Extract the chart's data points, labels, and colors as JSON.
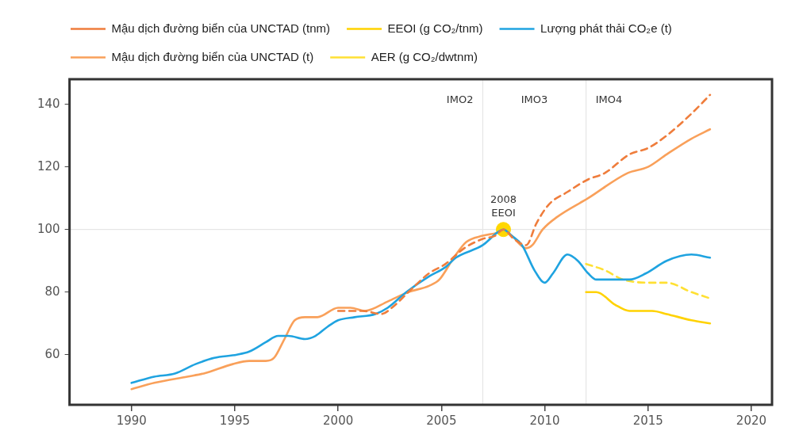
{
  "chart_data": {
    "type": "line",
    "legend": "top left",
    "series": [
      {
        "name": "Mậu dịch đường biển của UNCTAD (tnm)",
        "color": "#ef7d3c",
        "line_style": "dashed",
        "x": [
          2000,
          2001.2,
          2002.1,
          2002.6,
          2003.4,
          2004.4,
          2005.2,
          2006.1,
          2007,
          2007.6,
          2008,
          2008.5,
          2009.1,
          2009.6,
          2010.2,
          2011.1,
          2012.1,
          2012.9,
          2014.1,
          2015,
          2015.9,
          2017.1,
          2018
        ],
        "values": [
          74,
          74,
          73,
          75,
          80,
          86,
          89,
          94,
          97,
          98,
          100,
          97,
          95,
          102,
          108,
          112,
          116,
          118,
          124,
          126,
          130,
          137,
          143
        ]
      },
      {
        "name": "EEOI (g CO₂/tnm)",
        "color": "#ffd200",
        "x": [
          2012,
          2012.5,
          2013.4,
          2014.1,
          2015.2,
          2015.9,
          2017.1,
          2018
        ],
        "values": [
          80,
          80,
          76,
          74,
          74,
          73,
          71,
          70
        ]
      },
      {
        "name": "Lượng phát thải CO₂e (t)",
        "color": "#1fa3e0",
        "x": [
          1990,
          1991.1,
          1992.1,
          1993.1,
          1994,
          1995.1,
          1995.7,
          1996.5,
          1997.1,
          1997.6,
          1998.4,
          1998.9,
          1999.5,
          2000,
          2000.8,
          2001.8,
          2002.4,
          2003.3,
          2004.4,
          2005.2,
          2005.7,
          2007,
          2007.7,
          2008,
          2008.4,
          2008.9,
          2009.5,
          2010,
          2010.4,
          2011.1,
          2011.6,
          2012.1,
          2012.5,
          2013.4,
          2014.1,
          2014.9,
          2015.9,
          2017.1,
          2018
        ],
        "values": [
          51,
          53,
          54,
          57,
          59,
          60,
          61,
          64,
          66,
          66,
          65,
          66,
          69,
          71,
          72,
          73,
          75,
          80,
          85,
          88,
          91,
          95,
          99,
          100,
          98,
          95,
          87,
          83,
          86,
          92,
          90,
          86,
          84,
          84,
          84,
          86,
          90,
          92,
          91
        ]
      },
      {
        "name": "Mậu dịch đường biển của UNCTAD (t)",
        "color": "#f9a05a",
        "x": [
          1990,
          1991.1,
          1992.7,
          1993.5,
          1994.9,
          1995.7,
          1996.5,
          1996.9,
          1997.4,
          1997.9,
          1998.4,
          1999,
          2000,
          2000.6,
          2001.3,
          2002.4,
          2003.4,
          2004.4,
          2004.9,
          2005.6,
          2006.2,
          2007,
          2007.7,
          2008,
          2008.4,
          2009.1,
          2009.4,
          2009.9,
          2010.6,
          2012.1,
          2014,
          2015,
          2015.9,
          2017.1,
          2018
        ],
        "values": [
          49,
          51,
          53,
          54,
          57,
          58,
          58,
          59,
          65,
          71,
          72,
          72,
          75,
          75,
          74,
          77,
          80,
          82,
          84,
          91,
          96,
          98,
          99,
          100,
          98,
          94,
          95,
          100,
          104,
          110,
          118,
          120,
          124,
          129,
          132
        ]
      },
      {
        "name": "AER (g CO₂/dwtnm)",
        "color": "#ffe033",
        "line_style": "dashed",
        "x": [
          2012,
          2012.9,
          2013.8,
          2015.2,
          2015.9,
          2017.1,
          2018
        ],
        "values": [
          89,
          87,
          84,
          83,
          83,
          80,
          78
        ]
      },
      {
        "type": "scatter",
        "marker": "circle",
        "color": "#ffd700",
        "x": [
          2008
        ],
        "values": [
          100
        ]
      }
    ],
    "xlim": [
      1987,
      2021
    ],
    "xticks": [
      1990,
      1995,
      2000,
      2005,
      2010,
      2015,
      2020
    ],
    "ylim": [
      44,
      148
    ],
    "yticks": [
      60,
      80,
      100,
      120,
      140
    ],
    "ref_lines": [
      {
        "axis": "x",
        "value": 2007,
        "color": "#e6e6e6"
      },
      {
        "axis": "x",
        "value": 2012,
        "color": "#e6e6e6"
      },
      {
        "axis": "y",
        "value": 100,
        "color": "#e6e6e6"
      }
    ],
    "annotations": [
      "IMO2",
      "IMO3",
      "IMO4",
      {
        "text": "2008\nEEOI",
        "x": 2008,
        "y": 100
      }
    ]
  }
}
